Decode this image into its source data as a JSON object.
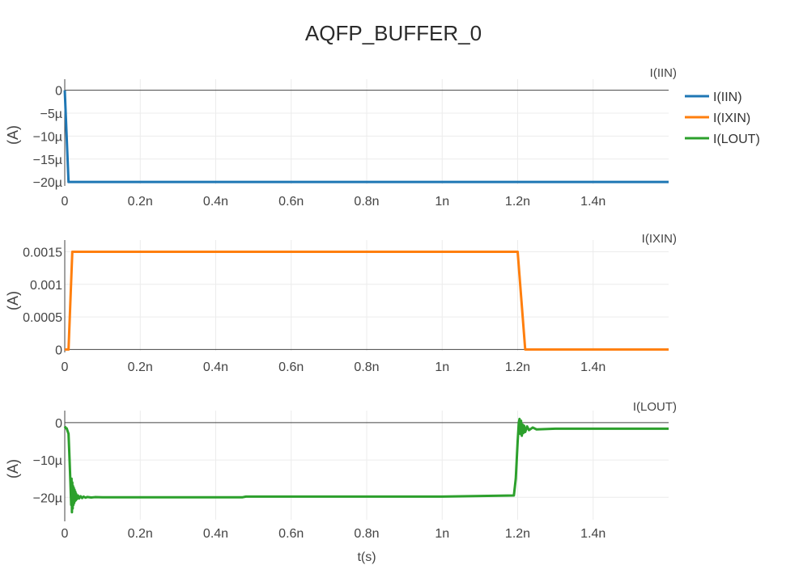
{
  "chart_data": {
    "type": "line",
    "title": "AQFP_BUFFER_0",
    "xlabel": "t(s)",
    "xlim": [
      0,
      1.6e-09
    ],
    "x_ticks": [
      0,
      2e-10,
      4e-10,
      6e-10,
      8e-10,
      1e-09,
      1.2e-09,
      1.4e-09
    ],
    "x_tick_labels": [
      "0",
      "0.2n",
      "0.4n",
      "0.6n",
      "0.8n",
      "1n",
      "1.2n",
      "1.4n"
    ],
    "legend": {
      "position": "top-right",
      "entries": [
        "I(IIN)",
        "I(IXIN)",
        "I(LOUT)"
      ]
    },
    "colors": {
      "I(IIN)": "#1f77b4",
      "I(IXIN)": "#ff7f0e",
      "I(LOUT)": "#2ca02c"
    },
    "subplots": [
      {
        "subtitle": "I(IIN)",
        "ylabel": "(A)",
        "ylim": [
          -2.05e-05,
          1e-06
        ],
        "y_ticks": [
          0,
          -5e-06,
          -1e-05,
          -1.5e-05,
          -2e-05
        ],
        "y_tick_labels": [
          "0",
          "−5µ",
          "−10µ",
          "−15µ",
          "−20µ"
        ],
        "series": [
          {
            "name": "I(IIN)",
            "x": [
              0,
              1e-11,
              1.6e-09
            ],
            "y": [
              0,
              -2e-05,
              -2e-05
            ]
          }
        ]
      },
      {
        "subtitle": "I(IXIN)",
        "ylabel": "(A)",
        "ylim": [
          -2e-05,
          0.00158
        ],
        "y_ticks": [
          0,
          0.0005,
          0.001,
          0.0015
        ],
        "y_tick_labels": [
          "0",
          "0.0005",
          "0.001",
          "0.0015"
        ],
        "series": [
          {
            "name": "I(IXIN)",
            "x": [
              0,
              1e-11,
              2e-11,
              1.2e-09,
              1.22e-09,
              1.6e-09
            ],
            "y": [
              0,
              0,
              0.0015,
              0.0015,
              0,
              0
            ]
          }
        ]
      },
      {
        "subtitle": "I(LOUT)",
        "ylabel": "(A)",
        "ylim": [
          -2.6e-05,
          1.5e-06
        ],
        "y_ticks": [
          0,
          -1e-05,
          -2e-05
        ],
        "y_tick_labels": [
          "0",
          "−10µ",
          "−20µ"
        ],
        "series": [
          {
            "name": "I(LOUT)",
            "x": [
              0,
              3e-12,
              5e-12,
              1e-11,
              1.2e-11,
              1.5e-11,
              1.7e-11,
              1.8e-11,
              1.9e-11,
              2e-11,
              2.1e-11,
              2.2e-11,
              2.3e-11,
              2.4e-11,
              2.5e-11,
              2.6e-11,
              2.7e-11,
              2.8e-11,
              2.9e-11,
              3e-11,
              3.2e-11,
              3.5e-11,
              3.8e-11,
              4.2e-11,
              4.6e-11,
              5e-11,
              5.5e-11,
              6e-11,
              7e-11,
              8e-11,
              1e-10,
              4.7e-10,
              4.8e-10,
              1e-09,
              1.19e-09,
              1.195e-09,
              1.2e-09,
              1.203e-09,
              1.205e-09,
              1.207e-09,
              1.209e-09,
              1.211e-09,
              1.213e-09,
              1.215e-09,
              1.217e-09,
              1.22e-09,
              1.225e-09,
              1.23e-09,
              1.24e-09,
              1.25e-09,
              1.3e-09,
              1.6e-09
            ],
            "y": [
              -1e-06,
              -1.5e-06,
              -1.5e-06,
              -3e-06,
              -8e-06,
              -1.6e-05,
              -2.2e-05,
              -1.5e-05,
              -2.4e-05,
              -1.6e-05,
              -2.3e-05,
              -1.7e-05,
              -2.2e-05,
              -1.75e-05,
              -2.15e-05,
              -1.8e-05,
              -2.1e-05,
              -1.85e-05,
              -2.08e-05,
              -1.9e-05,
              -2.05e-05,
              -1.95e-05,
              -2.03e-05,
              -1.97e-05,
              -2.02e-05,
              -1.98e-05,
              -2.01e-05,
              -1.99e-05,
              -2.005e-05,
              -1.995e-05,
              -2e-05,
              -2e-05,
              -1.98e-05,
              -1.98e-05,
              -1.95e-05,
              -1.5e-05,
              -5e-06,
              0,
              1e-06,
              -3e-06,
              5e-07,
              -3.5e-06,
              -5e-07,
              -2.8e-06,
              -8e-07,
              -2.5e-06,
              -1e-06,
              -2e-06,
              -1.3e-06,
              -1.8e-06,
              -1.6e-06,
              -1.6e-06
            ]
          }
        ]
      }
    ]
  }
}
